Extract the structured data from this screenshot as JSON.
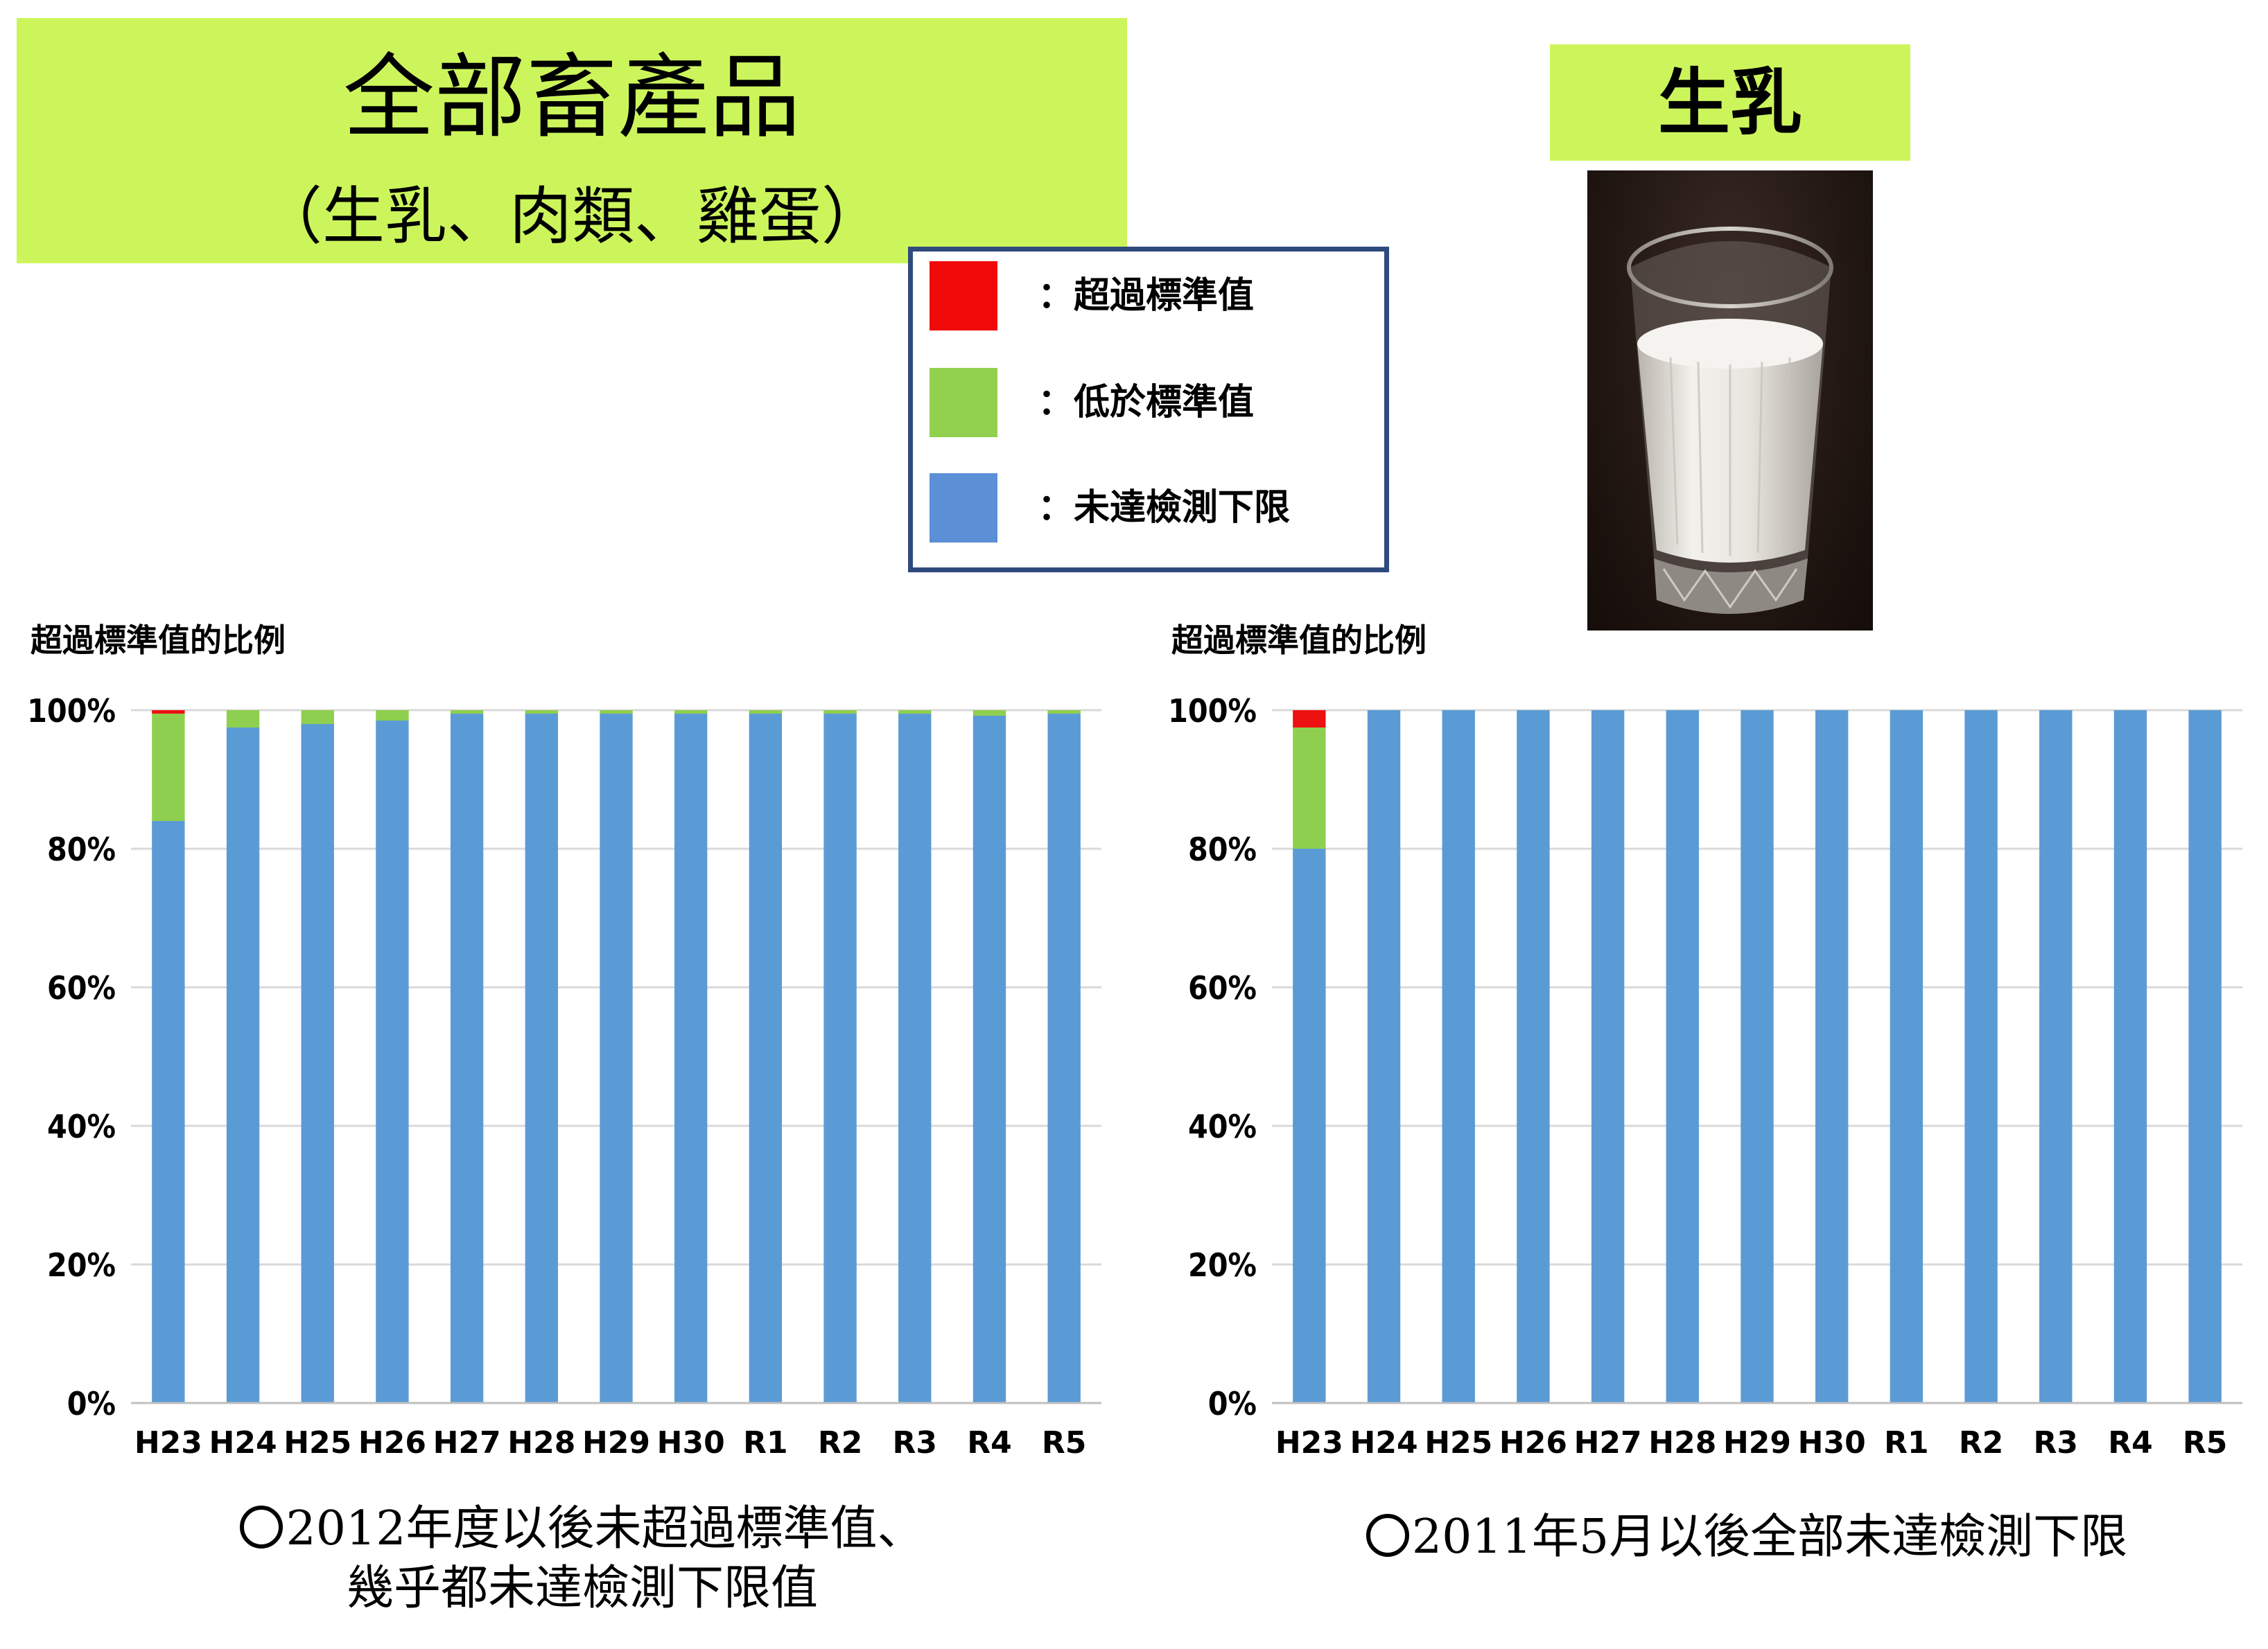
{
  "header": {
    "title": "全部畜產品",
    "subtitle": "（生乳、肉類、雞蛋）"
  },
  "milk_label": "生乳",
  "legend": {
    "items": [
      {
        "label": "：超過標準值",
        "color": "#f00a0a"
      },
      {
        "label": "：低於標準值",
        "color": "#92d050"
      },
      {
        "label": "：未達檢測下限",
        "color": "#5b8fd6"
      }
    ]
  },
  "captions": {
    "left_line1": "2012年度以後未超過標準值、",
    "left_line2": "幾乎都未達檢測下限值",
    "right_line1": "2011年5月以後全部未達檢測下限"
  },
  "colors": {
    "exceed": "#ee1111",
    "below": "#8fcf4f",
    "undetected": "#5b9bd5",
    "grid": "#d9d9d9"
  },
  "chart_data": [
    {
      "type": "bar",
      "stacked": true,
      "title": "",
      "ylabel": "超過標準值的比例",
      "categories": [
        "H23",
        "H24",
        "H25",
        "H26",
        "H27",
        "H28",
        "H29",
        "H30",
        "R1",
        "R2",
        "R3",
        "R4",
        "R5"
      ],
      "yticks": [
        "0%",
        "20%",
        "40%",
        "60%",
        "80%",
        "100%"
      ],
      "ylim": [
        0,
        100
      ],
      "series": [
        {
          "name": "：未達檢測下限",
          "values": [
            84,
            97.5,
            98,
            98.5,
            99.5,
            99.5,
            99.5,
            99.5,
            99.5,
            99.5,
            99.5,
            99.2,
            99.5
          ]
        },
        {
          "name": "：低於標準值",
          "values": [
            15.5,
            2.5,
            2,
            1.5,
            0.5,
            0.5,
            0.5,
            0.5,
            0.5,
            0.5,
            0.5,
            0.8,
            0.5
          ]
        },
        {
          "name": "：超過標準值",
          "values": [
            0.5,
            0,
            0,
            0,
            0,
            0,
            0,
            0,
            0,
            0,
            0,
            0,
            0
          ]
        }
      ]
    },
    {
      "type": "bar",
      "stacked": true,
      "title": "",
      "ylabel": "超過標準值的比例",
      "categories": [
        "H23",
        "H24",
        "H25",
        "H26",
        "H27",
        "H28",
        "H29",
        "H30",
        "R1",
        "R2",
        "R3",
        "R4",
        "R5"
      ],
      "yticks": [
        "0%",
        "20%",
        "40%",
        "60%",
        "80%",
        "100%"
      ],
      "ylim": [
        0,
        100
      ],
      "series": [
        {
          "name": "：未達檢測下限",
          "values": [
            80,
            100,
            100,
            100,
            100,
            100,
            100,
            100,
            100,
            100,
            100,
            100,
            100
          ]
        },
        {
          "name": "：低於標準值",
          "values": [
            17.5,
            0,
            0,
            0,
            0,
            0,
            0,
            0,
            0,
            0,
            0,
            0,
            0
          ]
        },
        {
          "name": "：超過標準值",
          "values": [
            2.5,
            0,
            0,
            0,
            0,
            0,
            0,
            0,
            0,
            0,
            0,
            0,
            0
          ]
        }
      ]
    }
  ]
}
